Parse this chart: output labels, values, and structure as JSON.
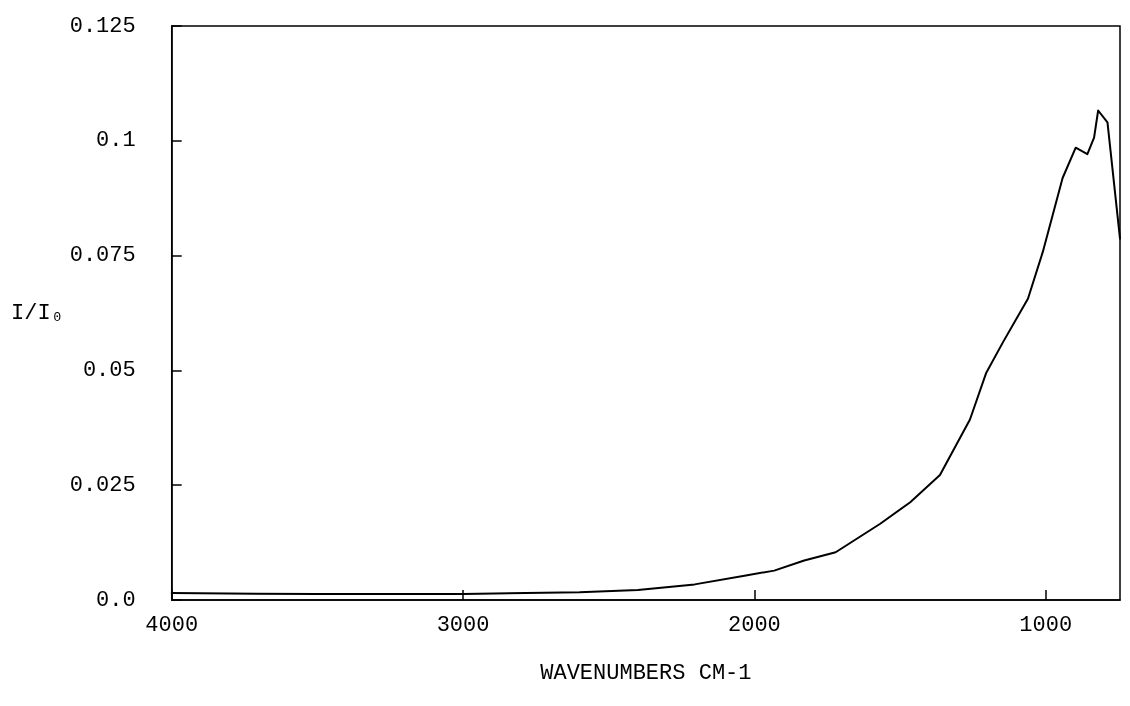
{
  "chart_data": {
    "type": "line",
    "xlabel": "WAVENUMBERS CM-1",
    "ylabel": "I/I₀",
    "xlim": [
      4000,
      745
    ],
    "ylim": [
      0,
      0.125
    ],
    "xticks": [
      4000,
      3000,
      2000,
      1000
    ],
    "yticks": [
      {
        "value": 0,
        "label": "0.0"
      },
      0.025,
      0.05,
      0.075,
      0.1,
      0.125
    ],
    "grid": false,
    "marker": "none",
    "line_style": "solid",
    "series": [
      {
        "color": "#000000",
        "x": [
          4000,
          3500,
          3000,
          2600,
          2400,
          2205,
          2034,
          1932,
          1829,
          1721,
          1568,
          1465,
          1363,
          1260,
          1204,
          1147,
          1061,
          1010,
          942,
          897,
          857,
          834,
          820,
          788,
          745
        ],
        "values": [
          0.0015,
          0.0013,
          0.0013,
          0.0017,
          0.0022,
          0.0034,
          0.0053,
          0.0064,
          0.0086,
          0.0104,
          0.0166,
          0.0213,
          0.0272,
          0.0393,
          0.0495,
          0.0561,
          0.0656,
          0.0758,
          0.0919,
          0.0985,
          0.0971,
          0.1007,
          0.1066,
          0.104,
          0.0787
        ]
      }
    ]
  }
}
